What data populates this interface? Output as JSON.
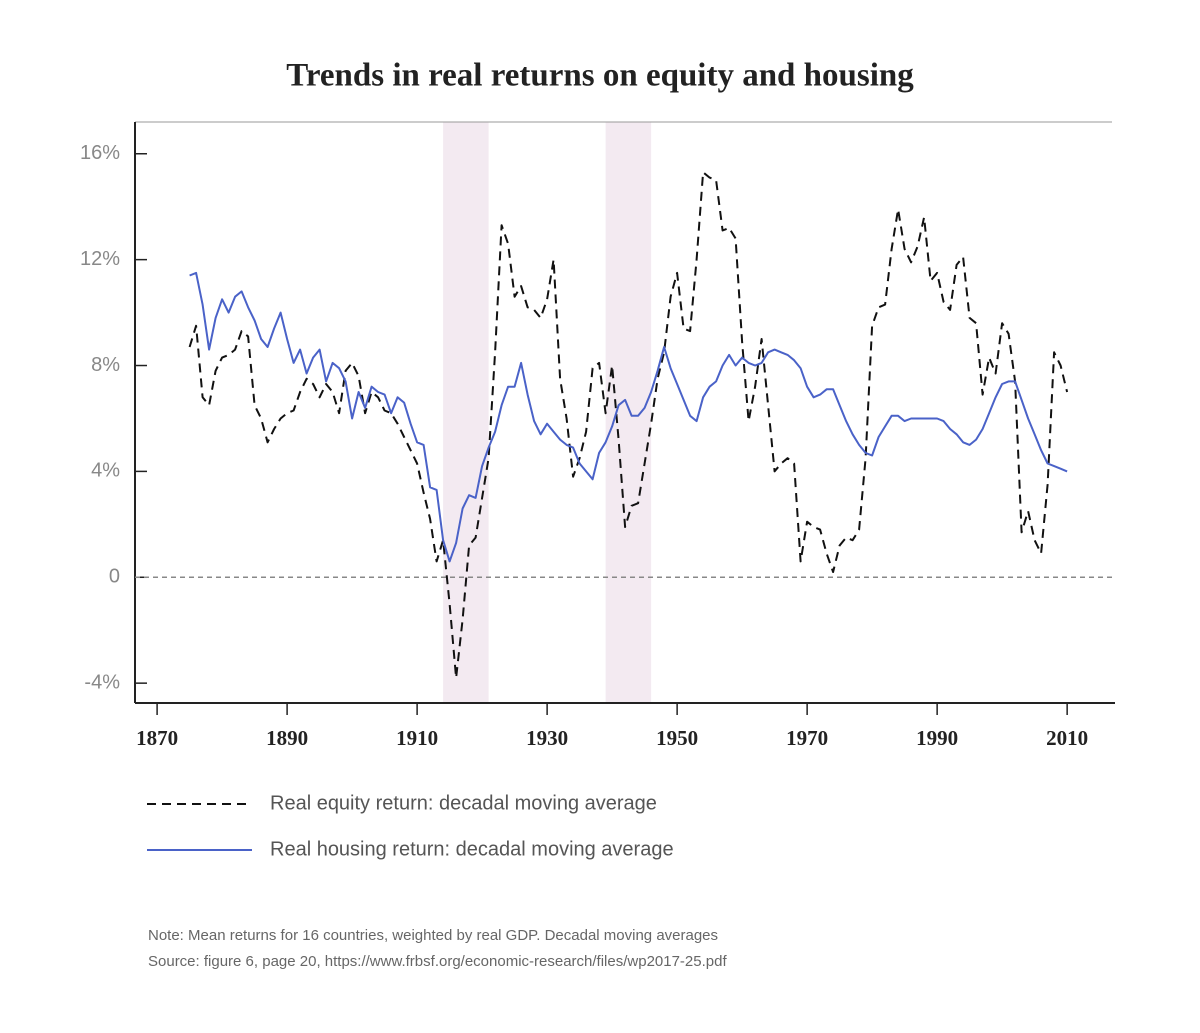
{
  "chart_data": {
    "type": "line",
    "title": "Trends in real returns on equity and housing",
    "x": [
      1875,
      1876,
      1877,
      1878,
      1879,
      1880,
      1881,
      1882,
      1883,
      1884,
      1885,
      1886,
      1887,
      1888,
      1889,
      1890,
      1891,
      1892,
      1893,
      1894,
      1895,
      1896,
      1897,
      1898,
      1899,
      1900,
      1901,
      1902,
      1903,
      1904,
      1905,
      1906,
      1907,
      1908,
      1909,
      1910,
      1911,
      1912,
      1913,
      1914,
      1915,
      1916,
      1917,
      1918,
      1919,
      1920,
      1921,
      1922,
      1923,
      1924,
      1925,
      1926,
      1927,
      1928,
      1929,
      1930,
      1931,
      1932,
      1933,
      1934,
      1935,
      1936,
      1937,
      1938,
      1939,
      1940,
      1941,
      1942,
      1943,
      1944,
      1945,
      1946,
      1947,
      1948,
      1949,
      1950,
      1951,
      1952,
      1953,
      1954,
      1955,
      1956,
      1957,
      1958,
      1959,
      1960,
      1961,
      1962,
      1963,
      1964,
      1965,
      1966,
      1967,
      1968,
      1969,
      1970,
      1971,
      1972,
      1973,
      1974,
      1975,
      1976,
      1977,
      1978,
      1979,
      1980,
      1981,
      1982,
      1983,
      1984,
      1985,
      1986,
      1987,
      1988,
      1989,
      1990,
      1991,
      1992,
      1993,
      1994,
      1995,
      1996,
      1997,
      1998,
      1999,
      2000,
      2001,
      2002,
      2003,
      2004,
      2005,
      2006,
      2007,
      2008,
      2009,
      2010
    ],
    "series": [
      {
        "name": "Real equity return: decadal moving average",
        "color": "#111111",
        "dashed": true,
        "values": [
          8.7,
          9.5,
          6.8,
          6.5,
          7.8,
          8.3,
          8.4,
          8.6,
          9.3,
          9.1,
          6.5,
          6.0,
          5.1,
          5.6,
          6.0,
          6.2,
          6.3,
          7.0,
          7.5,
          7.3,
          6.8,
          7.3,
          7.0,
          6.2,
          7.8,
          8.1,
          7.6,
          6.2,
          7.0,
          6.8,
          6.3,
          6.2,
          5.8,
          5.3,
          4.8,
          4.3,
          3.2,
          2.2,
          0.6,
          1.4,
          -1.0,
          -3.8,
          -1.6,
          1.2,
          1.5,
          3.0,
          4.5,
          8.5,
          13.3,
          12.6,
          10.6,
          11.0,
          10.2,
          10.1,
          9.8,
          10.5,
          12.0,
          7.5,
          6.0,
          3.8,
          4.5,
          5.5,
          7.9,
          8.1,
          6.2,
          8.0,
          5.2,
          1.9,
          2.7,
          2.8,
          4.3,
          5.8,
          7.5,
          8.5,
          10.6,
          11.5,
          9.4,
          9.3,
          12.0,
          15.3,
          15.1,
          15.0,
          13.1,
          13.2,
          12.8,
          8.9,
          5.9,
          7.2,
          9.0,
          6.5,
          4.0,
          4.3,
          4.5,
          4.3,
          0.6,
          2.1,
          1.9,
          1.8,
          0.9,
          0.2,
          1.2,
          1.5,
          1.4,
          1.8,
          4.5,
          9.5,
          10.2,
          10.3,
          12.4,
          13.9,
          12.4,
          11.9,
          12.5,
          13.6,
          11.2,
          11.5,
          10.4,
          10.1,
          11.8,
          12.1,
          9.8,
          9.6,
          6.9,
          8.3,
          7.7,
          9.6,
          9.2,
          7.4,
          1.7,
          2.5,
          1.4,
          0.9,
          3.5,
          8.5,
          8.0,
          7.0
        ]
      },
      {
        "name": "Real housing return: decadal moving average",
        "color": "#4a62c8",
        "dashed": false,
        "values": [
          11.4,
          11.5,
          10.3,
          8.6,
          9.8,
          10.5,
          10.0,
          10.6,
          10.8,
          10.2,
          9.7,
          9.0,
          8.7,
          9.4,
          10.0,
          9.0,
          8.1,
          8.6,
          7.7,
          8.3,
          8.6,
          7.4,
          8.1,
          7.9,
          7.4,
          6.0,
          7.0,
          6.4,
          7.2,
          7.0,
          6.9,
          6.2,
          6.8,
          6.6,
          5.8,
          5.1,
          5.0,
          3.4,
          3.3,
          1.4,
          0.6,
          1.3,
          2.6,
          3.1,
          3.0,
          4.2,
          4.9,
          5.5,
          6.5,
          7.2,
          7.2,
          8.1,
          6.9,
          5.9,
          5.4,
          5.8,
          5.5,
          5.2,
          5.0,
          4.9,
          4.3,
          4.0,
          3.7,
          4.7,
          5.1,
          5.7,
          6.5,
          6.7,
          6.1,
          6.1,
          6.4,
          7.0,
          7.8,
          8.7,
          7.9,
          7.3,
          6.7,
          6.1,
          5.9,
          6.8,
          7.2,
          7.4,
          8.0,
          8.4,
          8.0,
          8.3,
          8.1,
          8.0,
          8.1,
          8.5,
          8.6,
          8.5,
          8.4,
          8.2,
          7.9,
          7.2,
          6.8,
          6.9,
          7.1,
          7.1,
          6.5,
          5.9,
          5.4,
          5.0,
          4.7,
          4.6,
          5.3,
          5.7,
          6.1,
          6.1,
          5.9,
          6.0,
          6.0,
          6.0,
          6.0,
          6.0,
          5.9,
          5.6,
          5.4,
          5.1,
          5.0,
          5.2,
          5.6,
          6.2,
          6.8,
          7.3,
          7.4,
          7.4,
          6.7,
          6.0,
          5.4,
          4.8,
          4.3,
          4.2,
          4.1,
          4.0
        ]
      }
    ],
    "xlim": [
      1866.6,
      2016.9
    ],
    "ylim": [
      -4.75,
      17.2
    ],
    "xticks": [
      1870,
      1890,
      1910,
      1930,
      1950,
      1970,
      1990,
      2010
    ],
    "yticks": [
      {
        "value": -4,
        "label": "-4%"
      },
      0,
      {
        "value": 4,
        "label": "4%"
      },
      {
        "value": 8,
        "label": "8%"
      },
      {
        "value": 12,
        "label": "12%"
      },
      {
        "value": 16,
        "label": "16%"
      }
    ],
    "shaded_spans": [
      [
        1914,
        1921
      ],
      [
        1939,
        1946
      ]
    ],
    "shade_color": "#f3eaf1",
    "zero_line": true,
    "note": "Note: Mean returns for 16 countries, weighted by real GDP. Decadal moving averages",
    "source": "Source: figure 6, page 20, https://www.frbsf.org/economic-research/files/wp2017-25.pdf"
  }
}
